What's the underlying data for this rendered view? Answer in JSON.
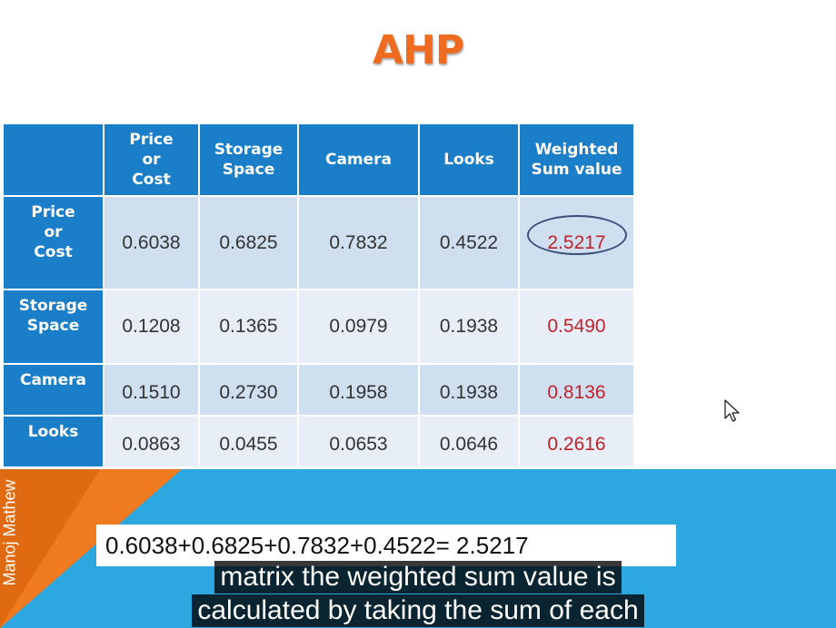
{
  "title": "AHP",
  "table": {
    "header": {
      "corner": "",
      "columns": [
        "Price or Cost",
        "Storage Space",
        "Camera",
        "Looks",
        "Weighted Sum value"
      ]
    },
    "rows": [
      {
        "label": "Price or Cost",
        "values": [
          "0.6038",
          "0.6825",
          "0.7832",
          "0.4522"
        ],
        "weighted_sum": "2.5217"
      },
      {
        "label": "Storage Space",
        "values": [
          "0.1208",
          "0.1365",
          "0.0979",
          "0.1938"
        ],
        "weighted_sum": "0.5490"
      },
      {
        "label": "Camera",
        "values": [
          "0.1510",
          "0.2730",
          "0.1958",
          "0.1938"
        ],
        "weighted_sum": "0.8136"
      },
      {
        "label": "Looks",
        "values": [
          "0.0863",
          "0.0455",
          "0.0653",
          "0.0646"
        ],
        "weighted_sum": "0.2616"
      }
    ]
  },
  "formula": "0.6038+0.6825+0.7832+0.4522= 2.5217",
  "author": "Manoj Mathew",
  "captions": [
    "matrix the weighted sum value is",
    "calculated by taking the sum of each"
  ],
  "colors": {
    "title": "#ee6b1f",
    "header_bg": "#1a7ec8",
    "weighted_sum_text": "#c0242a",
    "band_blue": "#2da7df",
    "band_orange": "#f07a1f"
  }
}
